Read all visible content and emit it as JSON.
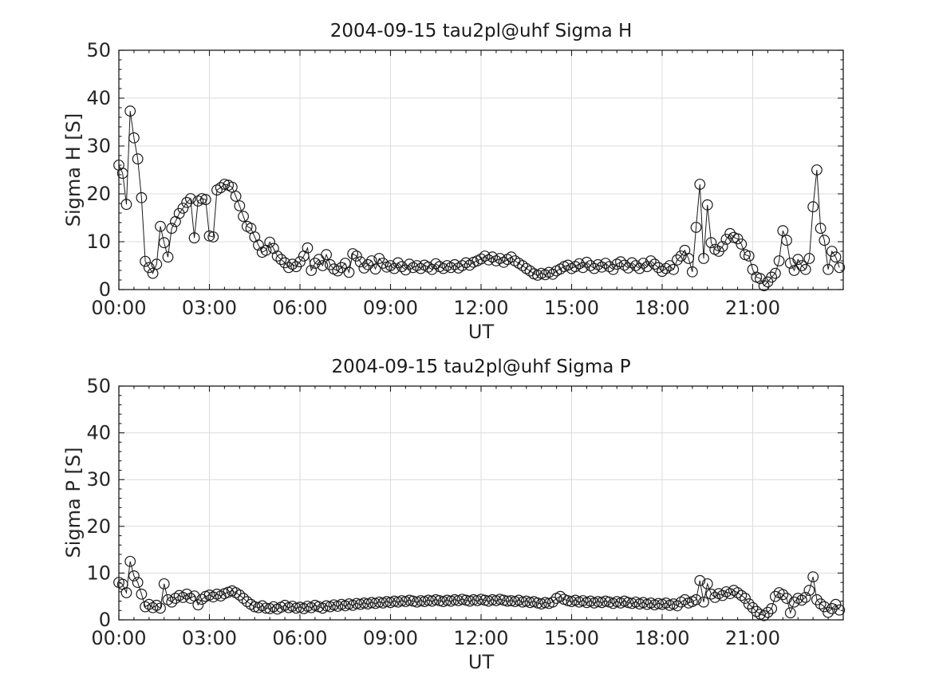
{
  "page": {
    "background": "#ffffff"
  },
  "chart_data": [
    {
      "type": "line",
      "title": "2004-09-15  tau2pl@uhf Sigma H",
      "xlabel": "UT",
      "ylabel": "Sigma H [S]",
      "grid": true,
      "legend": "none",
      "marker": "open-circle",
      "colors": {
        "line": "#1a1a1a",
        "marker": "#1a1a1a",
        "grid": "#dcdcdc",
        "axis": "#1a1a1a",
        "text": "#262626"
      },
      "x_axis": {
        "start_hour": 0,
        "end_hour": 24,
        "tick_hours": [
          0,
          3,
          6,
          9,
          12,
          15,
          18,
          21
        ],
        "tick_labels": [
          "00:00",
          "03:00",
          "06:00",
          "09:00",
          "12:00",
          "15:00",
          "18:00",
          "21:00"
        ],
        "minor_interval_hours": 0.5
      },
      "y_axis": {
        "min": 0,
        "max": 50,
        "ticks": [
          0,
          10,
          20,
          30,
          40,
          50
        ],
        "tick_labels": [
          "0",
          "10",
          "20",
          "30",
          "40",
          "50"
        ],
        "minor_interval": 2
      },
      "sample_interval_minutes": 7.5,
      "series": [
        {
          "name": "Sigma H",
          "start_hour": 0,
          "values": [
            26.0,
            24.3,
            17.8,
            37.3,
            31.7,
            27.3,
            19.2,
            5.9,
            4.6,
            3.4,
            5.3,
            13.2,
            9.8,
            6.8,
            12.8,
            14.2,
            15.9,
            17.0,
            18.2,
            19.0,
            10.8,
            18.5,
            19.0,
            18.8,
            11.2,
            11.0,
            20.8,
            21.3,
            22.0,
            21.8,
            21.4,
            19.5,
            17.5,
            15.3,
            13.2,
            12.8,
            11.0,
            9.3,
            7.8,
            8.2,
            9.9,
            8.6,
            7.0,
            6.3,
            5.6,
            4.6,
            5.3,
            4.8,
            5.8,
            7.0,
            8.7,
            4.0,
            5.5,
            6.3,
            5.0,
            7.3,
            5.2,
            4.3,
            3.9,
            4.6,
            5.5,
            3.6,
            7.5,
            7.0,
            5.8,
            4.5,
            5.2,
            6.0,
            4.3,
            6.5,
            5.5,
            4.7,
            5.0,
            4.4,
            5.6,
            4.8,
            4.1,
            5.3,
            4.6,
            5.0,
            4.4,
            5.1,
            4.7,
            4.2,
            5.4,
            4.8,
            4.4,
            5.0,
            4.6,
            5.2,
            4.5,
            5.0,
            5.6,
            5.1,
            5.7,
            6.0,
            6.4,
            7.0,
            6.2,
            6.8,
            6.0,
            6.5,
            5.7,
            6.3,
            6.8,
            6.0,
            5.5,
            5.0,
            4.4,
            3.9,
            3.3,
            3.0,
            3.4,
            3.1,
            3.6,
            3.2,
            3.9,
            4.3,
            4.8,
            5.1,
            4.4,
            4.8,
            5.4,
            4.6,
            5.7,
            5.0,
            4.4,
            5.2,
            4.7,
            5.5,
            4.8,
            4.2,
            5.3,
            5.8,
            5.1,
            4.5,
            5.6,
            5.0,
            4.4,
            5.5,
            4.8,
            6.0,
            5.3,
            4.6,
            3.8,
            4.4,
            5.0,
            4.2,
            6.2,
            7.0,
            8.2,
            6.5,
            3.7,
            13.0,
            22.0,
            6.5,
            17.7,
            9.8,
            8.4,
            8.0,
            9.0,
            10.5,
            11.7,
            10.9,
            10.6,
            9.5,
            7.3,
            7.0,
            4.2,
            2.6,
            2.3,
            0.8,
            1.6,
            2.6,
            3.4,
            6.0,
            12.3,
            10.3,
            5.5,
            4.0,
            6.3,
            5.0,
            4.2,
            6.5,
            17.3,
            25.0,
            12.8,
            10.3,
            4.2,
            8.0,
            6.8,
            4.6
          ]
        }
      ]
    },
    {
      "type": "line",
      "title": "2004-09-15  tau2pl@uhf Sigma P",
      "xlabel": "UT",
      "ylabel": "Sigma P [S]",
      "grid": true,
      "legend": "none",
      "marker": "open-circle",
      "colors": {
        "line": "#1a1a1a",
        "marker": "#1a1a1a",
        "grid": "#dcdcdc",
        "axis": "#1a1a1a",
        "text": "#262626"
      },
      "x_axis": {
        "start_hour": 0,
        "end_hour": 24,
        "tick_hours": [
          0,
          3,
          6,
          9,
          12,
          15,
          18,
          21
        ],
        "tick_labels": [
          "00:00",
          "03:00",
          "06:00",
          "09:00",
          "12:00",
          "15:00",
          "18:00",
          "21:00"
        ],
        "minor_interval_hours": 0.5
      },
      "y_axis": {
        "min": 0,
        "max": 50,
        "ticks": [
          0,
          10,
          20,
          30,
          40,
          50
        ],
        "tick_labels": [
          "0",
          "10",
          "20",
          "30",
          "40",
          "50"
        ],
        "minor_interval": 2
      },
      "sample_interval_minutes": 7.5,
      "series": [
        {
          "name": "Sigma P",
          "start_hour": 0,
          "values": [
            8.0,
            7.6,
            5.8,
            12.5,
            9.4,
            8.0,
            5.5,
            2.8,
            3.3,
            2.6,
            3.1,
            2.5,
            7.7,
            4.3,
            3.8,
            4.6,
            5.2,
            4.8,
            5.5,
            4.6,
            5.1,
            3.2,
            4.4,
            5.0,
            5.3,
            4.9,
            5.5,
            5.1,
            5.6,
            5.9,
            6.2,
            5.8,
            5.3,
            4.6,
            3.9,
            3.3,
            2.8,
            2.6,
            3.0,
            2.5,
            2.4,
            2.8,
            2.3,
            2.7,
            3.1,
            2.6,
            2.9,
            2.5,
            2.7,
            2.4,
            2.9,
            2.6,
            3.1,
            2.8,
            2.5,
            3.0,
            2.8,
            3.2,
            2.9,
            3.3,
            3.0,
            3.4,
            3.1,
            3.5,
            3.3,
            3.6,
            3.4,
            3.7,
            3.5,
            3.8,
            3.6,
            3.9,
            3.7,
            4.0,
            3.8,
            4.1,
            3.9,
            4.2,
            4.0,
            3.8,
            4.1,
            3.9,
            4.2,
            4.0,
            4.3,
            4.1,
            3.9,
            4.2,
            4.0,
            4.3,
            4.1,
            4.4,
            4.2,
            4.0,
            4.3,
            4.1,
            4.4,
            4.2,
            4.0,
            4.3,
            4.1,
            4.4,
            4.2,
            4.0,
            4.1,
            3.9,
            4.2,
            3.8,
            4.0,
            3.7,
            3.9,
            3.6,
            3.4,
            3.7,
            3.5,
            3.8,
            4.6,
            5.0,
            4.4,
            4.1,
            3.9,
            4.2,
            3.8,
            4.1,
            3.7,
            4.0,
            3.6,
            3.9,
            3.7,
            4.0,
            3.8,
            3.5,
            3.9,
            3.6,
            4.0,
            3.7,
            3.5,
            3.8,
            3.4,
            3.7,
            3.3,
            3.6,
            3.2,
            3.5,
            3.3,
            3.6,
            3.1,
            3.4,
            3.0,
            3.8,
            4.3,
            3.6,
            3.9,
            4.3,
            8.4,
            3.8,
            7.7,
            5.5,
            4.8,
            5.6,
            5.2,
            6.0,
            5.6,
            6.3,
            5.8,
            5.2,
            4.6,
            3.4,
            2.6,
            1.8,
            1.2,
            0.9,
            1.6,
            2.4,
            5.0,
            5.8,
            5.4,
            4.6,
            1.5,
            3.8,
            4.6,
            4.2,
            4.8,
            6.3,
            9.2,
            4.3,
            3.4,
            2.8,
            1.6,
            2.4,
            3.3,
            2.1
          ]
        }
      ]
    }
  ]
}
